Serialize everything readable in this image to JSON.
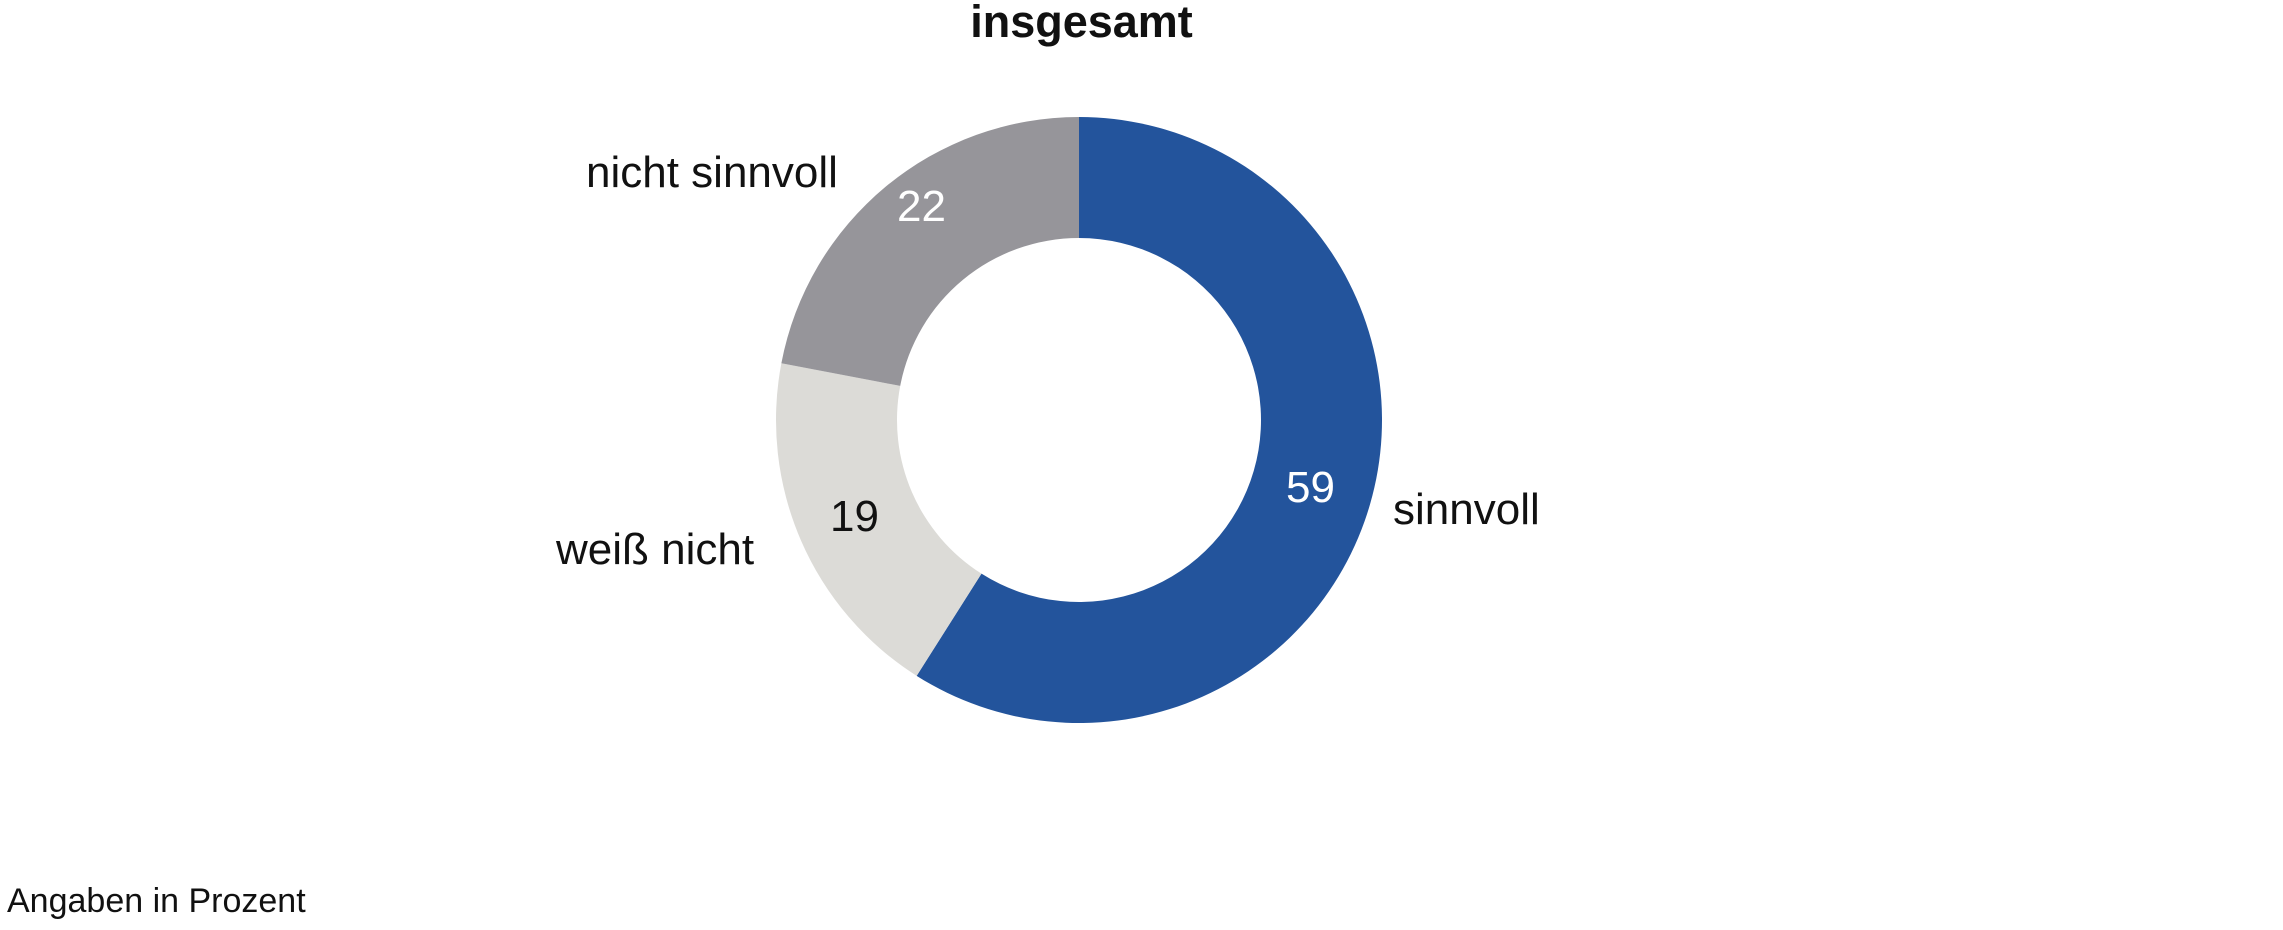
{
  "chart_data": {
    "type": "pie",
    "subtype": "donut",
    "title": "insgesamt",
    "categories": [
      "sinnvoll",
      "weiß nicht",
      "nicht sinnvoll"
    ],
    "values": [
      59,
      19,
      22
    ],
    "colors": [
      "#23549c",
      "#dcdbd7",
      "#96959a"
    ],
    "unit": "%",
    "footnote": "Angaben in Prozent"
  },
  "title": "insgesamt",
  "labels": {
    "sinnvoll": "sinnvoll",
    "weiss_nicht": "weiß nicht",
    "nicht_sinnvoll": "nicht sinnvoll"
  },
  "values": {
    "sinnvoll": "59",
    "weiss_nicht": "19",
    "nicht_sinnvoll": "22"
  },
  "footnote": "Angaben in Prozent"
}
